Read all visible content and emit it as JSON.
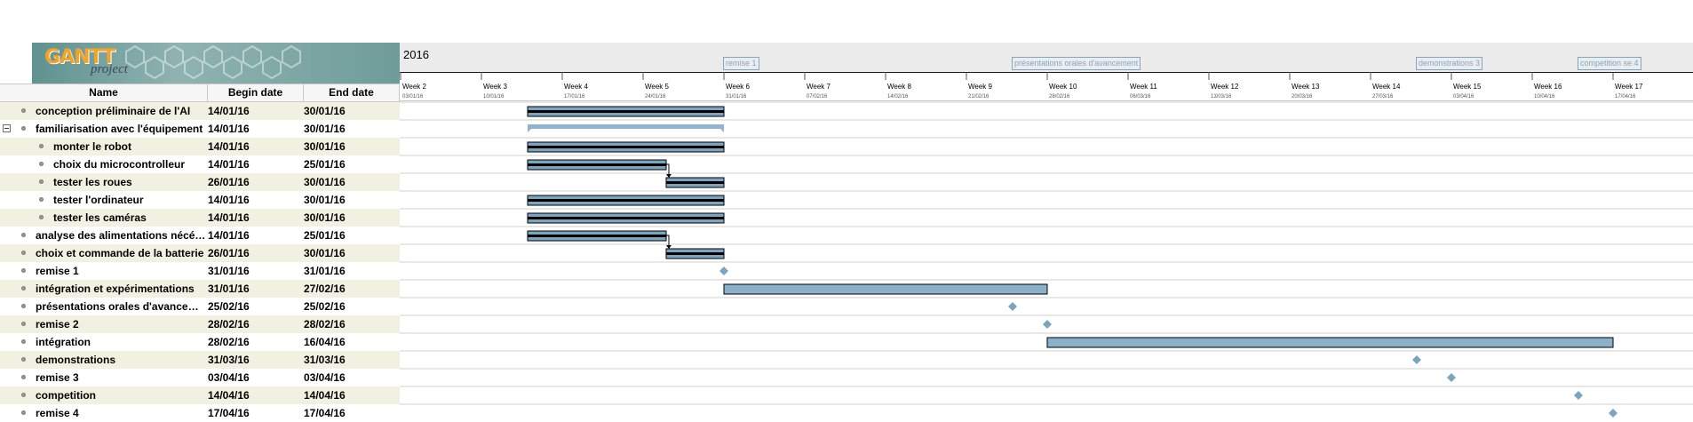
{
  "logo": {
    "word": "GANTT",
    "sub": "project"
  },
  "columns": {
    "name": "Name",
    "begin": "Begin date",
    "end": "End date"
  },
  "year": "2016",
  "weeks": [
    {
      "label": "Week 2",
      "date": "03/01/16"
    },
    {
      "label": "Week 3",
      "date": "10/01/16"
    },
    {
      "label": "Week 4",
      "date": "17/01/16"
    },
    {
      "label": "Week 5",
      "date": "24/01/16"
    },
    {
      "label": "Week 6",
      "date": "31/01/16"
    },
    {
      "label": "Week 7",
      "date": "07/02/16"
    },
    {
      "label": "Week 8",
      "date": "14/02/16"
    },
    {
      "label": "Week 9",
      "date": "21/02/16"
    },
    {
      "label": "Week 10",
      "date": "28/02/16"
    },
    {
      "label": "Week 11",
      "date": "06/03/16"
    },
    {
      "label": "Week 12",
      "date": "13/03/16"
    },
    {
      "label": "Week 13",
      "date": "20/03/16"
    },
    {
      "label": "Week 14",
      "date": "27/03/16"
    },
    {
      "label": "Week 15",
      "date": "03/04/16"
    },
    {
      "label": "Week 16",
      "date": "10/04/16"
    },
    {
      "label": "Week 17",
      "date": "17/04/16"
    }
  ],
  "milestone_tags": [
    {
      "label": "remise 1",
      "date": "31/01/16"
    },
    {
      "label": "présentations orales d'avancement",
      "date": "25/02/16"
    },
    {
      "label": "demonstrations 3",
      "date": "31/03/16"
    },
    {
      "label": "competition se 4",
      "date": "14/04/16"
    }
  ],
  "tasks": [
    {
      "name": "conception préliminaire de l'AI",
      "begin": "14/01/16",
      "end": "30/01/16",
      "level": 0,
      "type": "task",
      "start_day": 14,
      "end_day": 31
    },
    {
      "name": "familiarisation avec l'équipement",
      "begin": "14/01/16",
      "end": "30/01/16",
      "level": 0,
      "type": "summary",
      "collapsible": true,
      "start_day": 14,
      "end_day": 31
    },
    {
      "name": "monter le robot",
      "begin": "14/01/16",
      "end": "30/01/16",
      "level": 1,
      "type": "task",
      "start_day": 14,
      "end_day": 31
    },
    {
      "name": "choix du microcontrolleur",
      "begin": "14/01/16",
      "end": "25/01/16",
      "level": 1,
      "type": "task",
      "start_day": 14,
      "end_day": 26
    },
    {
      "name": "tester les roues",
      "begin": "26/01/16",
      "end": "30/01/16",
      "level": 1,
      "type": "task",
      "start_day": 26,
      "end_day": 31
    },
    {
      "name": "tester l'ordinateur",
      "begin": "14/01/16",
      "end": "30/01/16",
      "level": 1,
      "type": "task",
      "start_day": 14,
      "end_day": 31
    },
    {
      "name": "tester les caméras",
      "begin": "14/01/16",
      "end": "30/01/16",
      "level": 1,
      "type": "task",
      "start_day": 14,
      "end_day": 31
    },
    {
      "name": "analyse des alimentations nécéss...",
      "begin": "14/01/16",
      "end": "25/01/16",
      "level": 0,
      "type": "task",
      "start_day": 14,
      "end_day": 26
    },
    {
      "name": "choix et commande de la batterie",
      "begin": "26/01/16",
      "end": "30/01/16",
      "level": 0,
      "type": "task",
      "start_day": 26,
      "end_day": 31
    },
    {
      "name": "remise 1",
      "begin": "31/01/16",
      "end": "31/01/16",
      "level": 0,
      "type": "milestone",
      "start_day": 31,
      "end_day": 31
    },
    {
      "name": "intégration et expérimentations",
      "begin": "31/01/16",
      "end": "27/02/16",
      "level": 0,
      "type": "task",
      "start_day": 31,
      "end_day": 59,
      "fill": "#8bb0c9"
    },
    {
      "name": "présentations orales d'avanceme...",
      "begin": "25/02/16",
      "end": "25/02/16",
      "level": 0,
      "type": "milestone",
      "start_day": 56,
      "end_day": 56
    },
    {
      "name": "remise 2",
      "begin": "28/02/16",
      "end": "28/02/16",
      "level": 0,
      "type": "milestone",
      "start_day": 59,
      "end_day": 59
    },
    {
      "name": "intégration",
      "begin": "28/02/16",
      "end": "16/04/16",
      "level": 0,
      "type": "task",
      "start_day": 59,
      "end_day": 108,
      "fill": "#8bb0c9"
    },
    {
      "name": "demonstrations",
      "begin": "31/03/16",
      "end": "31/03/16",
      "level": 0,
      "type": "milestone",
      "start_day": 91,
      "end_day": 91
    },
    {
      "name": "remise 3",
      "begin": "03/04/16",
      "end": "03/04/16",
      "level": 0,
      "type": "milestone",
      "start_day": 94,
      "end_day": 94
    },
    {
      "name": "competition",
      "begin": "14/04/16",
      "end": "14/04/16",
      "level": 0,
      "type": "milestone",
      "start_day": 105,
      "end_day": 105
    },
    {
      "name": "remise 4",
      "begin": "17/04/16",
      "end": "17/04/16",
      "level": 0,
      "type": "milestone",
      "start_day": 108,
      "end_day": 108
    }
  ],
  "dependencies": [
    {
      "from": 3,
      "to": 4
    },
    {
      "from": 7,
      "to": 8
    }
  ],
  "colors": {
    "bar_fill": "#7ba4c1",
    "bar_stripe": "#000000",
    "milestone": "#7ba4c1",
    "summary": "#8fb3d0",
    "row_alt": "#f1f1e1",
    "header_band": "#ececec",
    "tag_border": "#7fa7c6"
  }
}
